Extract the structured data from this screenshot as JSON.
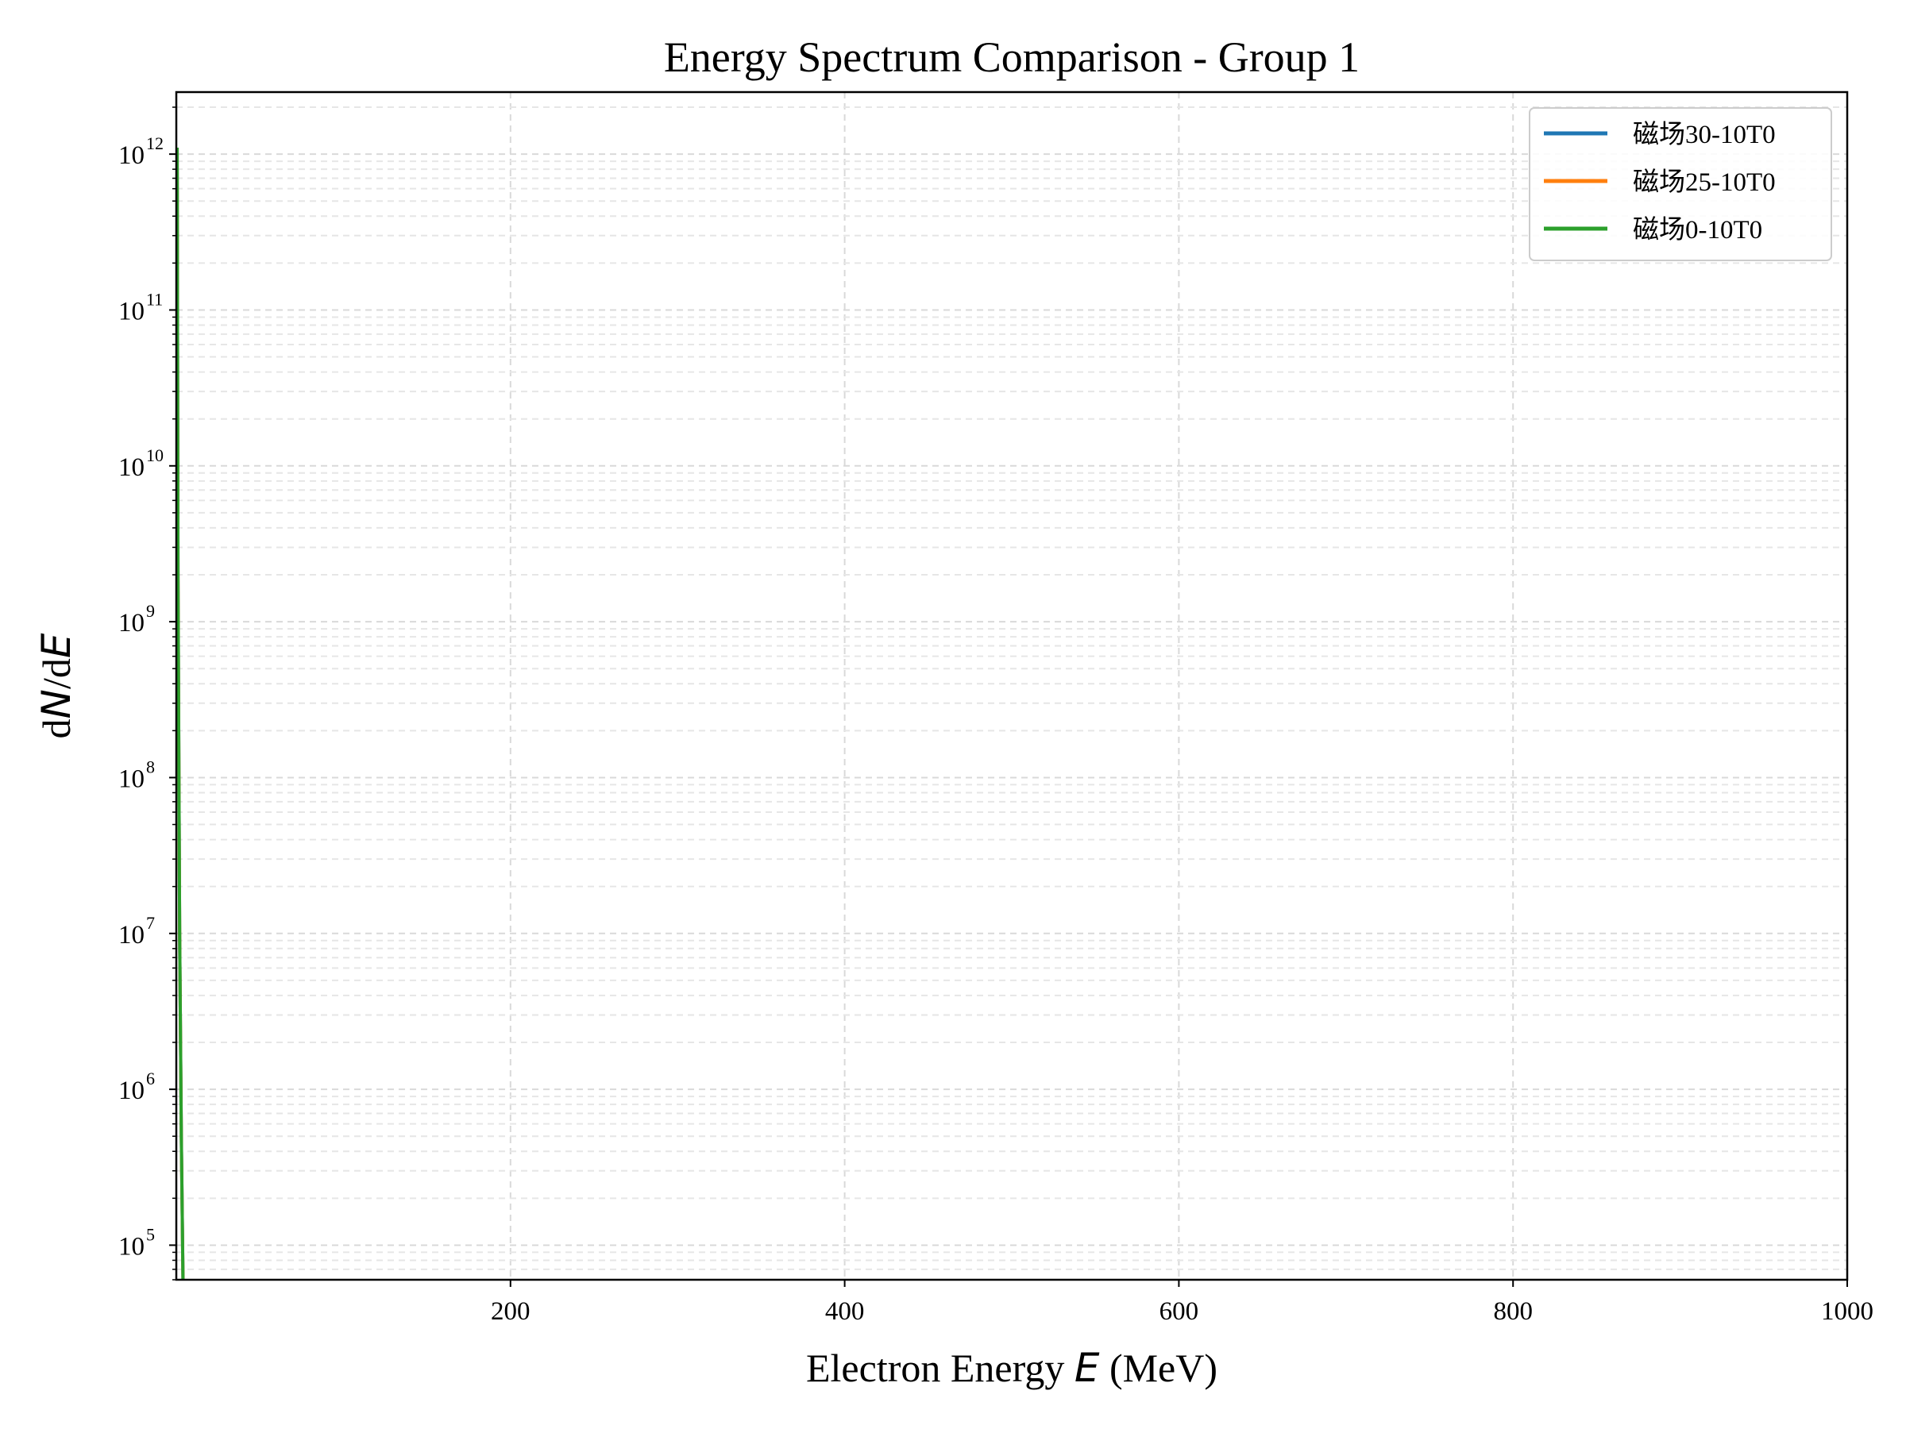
{
  "chart_data": {
    "type": "line",
    "title": "Energy Spectrum Comparison - Group 1",
    "xlabel": "Electron Energy E (MeV)",
    "xlabel_parts": {
      "pre": "Electron Energy ",
      "var": "E",
      "post": " (MeV)"
    },
    "ylabel": "dN/dE",
    "ylabel_parts": {
      "d1": "d",
      "v1": "N",
      "slash": "/d",
      "v2": "E"
    },
    "xscale": "linear",
    "yscale": "log",
    "xlim": [
      0,
      1000
    ],
    "ylim": [
      60000,
      2500000000000
    ],
    "xticks": [
      200,
      400,
      600,
      800,
      1000
    ],
    "xtick_labels": [
      "200",
      "400",
      "600",
      "800",
      "1000"
    ],
    "yticks_exponents": [
      5,
      6,
      7,
      8,
      9,
      10,
      11,
      12
    ],
    "ytick_base": "10",
    "grid": true,
    "legend_position": "top-right",
    "series": [
      {
        "name": "磁场30-10T0",
        "color": "#1f77b4",
        "x": [
          0.5,
          1,
          2,
          3,
          4
        ],
        "y": [
          1100000000000.0,
          2000000000.0,
          10000000.0,
          500000.0,
          60000
        ]
      },
      {
        "name": "磁场25-10T0",
        "color": "#ff7f0e",
        "x": [
          0.5,
          1,
          2,
          3,
          4
        ],
        "y": [
          1100000000000.0,
          2000000000.0,
          10000000.0,
          500000.0,
          60000
        ]
      },
      {
        "name": "磁场0-10T0",
        "color": "#2ca02c",
        "x": [
          0.5,
          1,
          2,
          3,
          4
        ],
        "y": [
          1100000000000.0,
          2000000000.0,
          10000000.0,
          500000.0,
          60000
        ]
      }
    ]
  }
}
